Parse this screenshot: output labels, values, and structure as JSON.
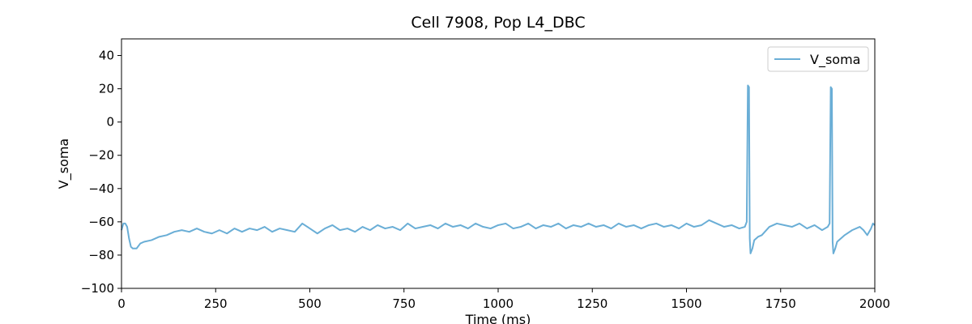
{
  "chart_data": {
    "type": "line",
    "title": "Cell 7908, Pop L4_DBC",
    "xlabel": "Time (ms)",
    "ylabel": "V_soma",
    "x": [
      0,
      5,
      10,
      15,
      20,
      25,
      30,
      40,
      50,
      60,
      80,
      100,
      120,
      140,
      160,
      180,
      200,
      220,
      240,
      260,
      280,
      300,
      320,
      340,
      360,
      380,
      400,
      420,
      440,
      460,
      480,
      500,
      520,
      540,
      560,
      580,
      600,
      620,
      640,
      660,
      680,
      700,
      720,
      740,
      760,
      780,
      800,
      820,
      840,
      860,
      880,
      900,
      920,
      940,
      960,
      980,
      1000,
      1020,
      1040,
      1060,
      1080,
      1100,
      1120,
      1140,
      1160,
      1180,
      1200,
      1220,
      1240,
      1260,
      1280,
      1300,
      1320,
      1340,
      1360,
      1380,
      1400,
      1420,
      1440,
      1460,
      1480,
      1500,
      1520,
      1540,
      1560,
      1580,
      1600,
      1620,
      1640,
      1655,
      1660,
      1663,
      1666,
      1668,
      1670,
      1675,
      1680,
      1690,
      1700,
      1720,
      1740,
      1760,
      1780,
      1800,
      1820,
      1840,
      1860,
      1875,
      1880,
      1883,
      1886,
      1888,
      1890,
      1895,
      1900,
      1920,
      1940,
      1960,
      1970,
      1980,
      1990,
      1995,
      2000
    ],
    "series": [
      {
        "name": "V_soma",
        "color": "#6aaed6",
        "values": [
          -65,
          -61,
          -61,
          -63,
          -70,
          -75,
          -76,
          -76,
          -73,
          -72,
          -71,
          -69,
          -68,
          -66,
          -65,
          -66,
          -64,
          -66,
          -67,
          -65,
          -67,
          -64,
          -66,
          -64,
          -65,
          -63,
          -66,
          -64,
          -65,
          -66,
          -61,
          -64,
          -67,
          -64,
          -62,
          -65,
          -64,
          -66,
          -63,
          -65,
          -62,
          -64,
          -63,
          -65,
          -61,
          -64,
          -63,
          -62,
          -64,
          -61,
          -63,
          -62,
          -64,
          -61,
          -63,
          -64,
          -62,
          -61,
          -64,
          -63,
          -61,
          -64,
          -62,
          -63,
          -61,
          -64,
          -62,
          -63,
          -61,
          -63,
          -62,
          -64,
          -61,
          -63,
          -62,
          -64,
          -62,
          -61,
          -63,
          -62,
          -64,
          -61,
          -63,
          -62,
          -59,
          -61,
          -63,
          -62,
          -64,
          -63,
          -60,
          22,
          21,
          -70,
          -79,
          -76,
          -71,
          -69,
          -68,
          -63,
          -61,
          -62,
          -63,
          -61,
          -64,
          -62,
          -65,
          -63,
          -61,
          21,
          20,
          -72,
          -79,
          -76,
          -72,
          -68,
          -65,
          -63,
          -65,
          -68,
          -64,
          -61,
          -62
        ]
      }
    ],
    "xlim": [
      0,
      2000
    ],
    "xticks": [
      0,
      250,
      500,
      750,
      1000,
      1250,
      1500,
      1750,
      2000
    ],
    "ylim": [
      -100,
      50
    ],
    "yticks": [
      {
        "value": -100,
        "label": "−100"
      },
      {
        "value": -80,
        "label": "−80"
      },
      {
        "value": -60,
        "label": "−60"
      },
      {
        "value": -40,
        "label": "−40"
      },
      {
        "value": -20,
        "label": "−20"
      },
      0,
      20,
      40
    ],
    "legend": "upper right"
  }
}
